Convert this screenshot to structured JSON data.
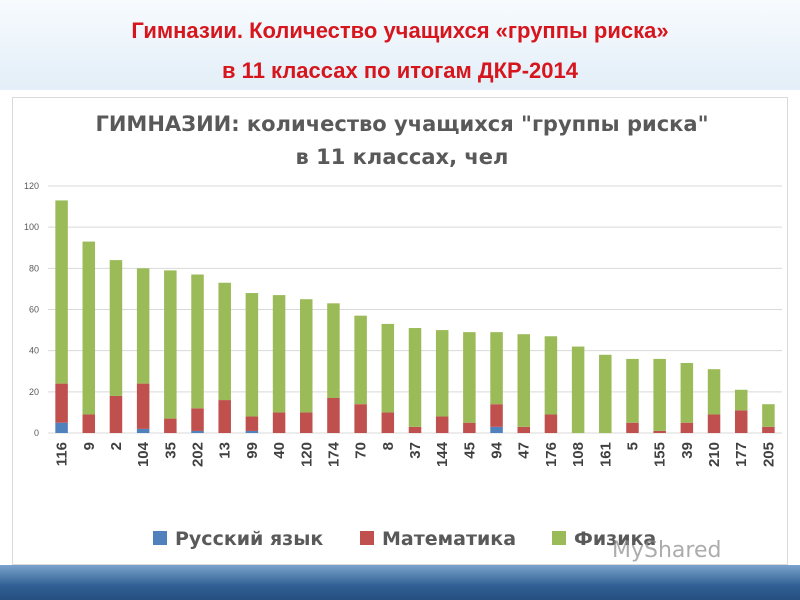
{
  "header": {
    "line1": "Гимназии. Количество учащихся «группы риска»",
    "line2": "в 11 классах по итогам ДКР-2014"
  },
  "watermark": "MyShared",
  "chart_data": {
    "type": "bar",
    "stacked": true,
    "title": "ГИМНАЗИИ: количество учащихся \"группы риска\"",
    "subtitle": "в 11 классах, чел",
    "xlabel": "",
    "ylabel": "",
    "ylim": [
      0,
      120
    ],
    "yticks": [
      0,
      20,
      40,
      60,
      80,
      100,
      120
    ],
    "grid": true,
    "legend": "bottom",
    "categories": [
      "116",
      "9",
      "2",
      "104",
      "35",
      "202",
      "13",
      "99",
      "40",
      "120",
      "174",
      "70",
      "8",
      "37",
      "144",
      "45",
      "94",
      "47",
      "176",
      "108",
      "161",
      "5",
      "155",
      "39",
      "210",
      "177",
      "205"
    ],
    "series": [
      {
        "name": "Русский язык",
        "color": "#4f81bd",
        "values": [
          5,
          0,
          0,
          2,
          0,
          1,
          0,
          1,
          0,
          0,
          0,
          0,
          0,
          0,
          0,
          0,
          3,
          0,
          0,
          0,
          0,
          0,
          0,
          0,
          0,
          0,
          0
        ]
      },
      {
        "name": "Математика",
        "color": "#c0504d",
        "values": [
          19,
          9,
          18,
          22,
          7,
          11,
          16,
          7,
          10,
          10,
          17,
          14,
          10,
          3,
          8,
          5,
          11,
          3,
          9,
          0,
          0,
          5,
          1,
          5,
          9,
          11,
          3
        ]
      },
      {
        "name": "Физика",
        "color": "#9bbb59",
        "values": [
          89,
          84,
          66,
          56,
          72,
          65,
          57,
          60,
          57,
          55,
          46,
          43,
          43,
          48,
          42,
          44,
          35,
          45,
          38,
          42,
          38,
          31,
          35,
          29,
          22,
          10,
          11
        ]
      }
    ]
  }
}
